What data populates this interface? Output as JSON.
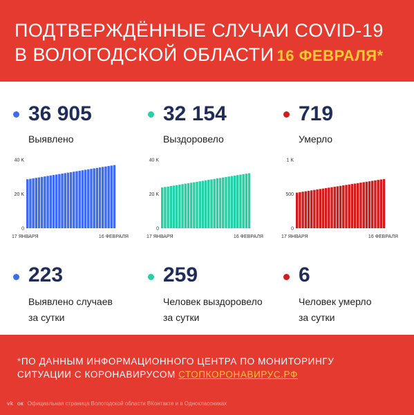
{
  "header": {
    "title_line1": "ПОДТВЕРЖДЁННЫЕ СЛУЧАИ COVID-19",
    "title_line2": "В ВОЛОГОДСКОЙ ОБЛАСТИ",
    "date": "16 ФЕВРАЛЯ*"
  },
  "colors": {
    "background": "#e53a2f",
    "date_accent": "#ffc933",
    "detected": "#3d6cf0",
    "recovered": "#26cfa4",
    "died": "#d21b1b",
    "numbers": "#1f2d5c"
  },
  "totals": [
    {
      "value": "36 905",
      "label": "Выявлено",
      "color": "#3d6cf0"
    },
    {
      "value": "32 154",
      "label": "Выздоровело",
      "color": "#26cfa4"
    },
    {
      "value": "719",
      "label": "Умерло",
      "color": "#d21b1b"
    }
  ],
  "daily": [
    {
      "value": "223",
      "label_line1": "Выявлено случаев",
      "label_line2": "за сутки",
      "color": "#3d6cf0"
    },
    {
      "value": "259",
      "label_line1": "Человек выздоровело",
      "label_line2": "за сутки",
      "color": "#26cfa4"
    },
    {
      "value": "6",
      "label_line1": "Человек умерло",
      "label_line2": "за сутки",
      "color": "#d21b1b"
    }
  ],
  "chart_data": [
    {
      "type": "bar",
      "series": [
        {
          "values_start": 28600,
          "values_end": 36905,
          "count": 31
        }
      ],
      "y_ticks": [
        "0",
        "20 K",
        "40 K"
      ],
      "y_tick_values": [
        0,
        20000,
        40000
      ],
      "ylim": [
        0,
        40000
      ],
      "x_labels": [
        "17 ЯНВАРЯ",
        "16 ФЕВРАЛЯ"
      ],
      "color": "#3d6cf0"
    },
    {
      "type": "bar",
      "series": [
        {
          "values_start": 23800,
          "values_end": 32154,
          "count": 31
        }
      ],
      "y_ticks": [
        "0",
        "20 K",
        "40 K"
      ],
      "y_tick_values": [
        0,
        20000,
        40000
      ],
      "ylim": [
        0,
        40000
      ],
      "x_labels": [
        "17 ЯНВАРЯ",
        "16 ФЕВРАЛЯ"
      ],
      "color": "#26cfa4"
    },
    {
      "type": "bar",
      "series": [
        {
          "values_start": 520,
          "values_end": 719,
          "count": 31
        }
      ],
      "y_ticks": [
        "0",
        "500",
        "1 K"
      ],
      "y_tick_values": [
        0,
        500,
        1000
      ],
      "ylim": [
        0,
        1000
      ],
      "x_labels": [
        "17 ЯНВАРЯ",
        "16 ФЕВРАЛЯ"
      ],
      "color": "#d21b1b"
    }
  ],
  "footnote": {
    "line1": "*ПО ДАННЫМ ИНФОРМАЦИОННОГО ЦЕНТРА ПО МОНИТОРИНГУ",
    "line2_text": "СИТУАЦИИ С КОРОНАВИРУСОМ ",
    "line2_link": "СТОПКОРОНАВИРУС.РФ"
  },
  "credits": {
    "icons": "vk-icon ok-icon",
    "text": "Официальная страница Вологодской области ВКонтакте и в Одноклассниках"
  }
}
